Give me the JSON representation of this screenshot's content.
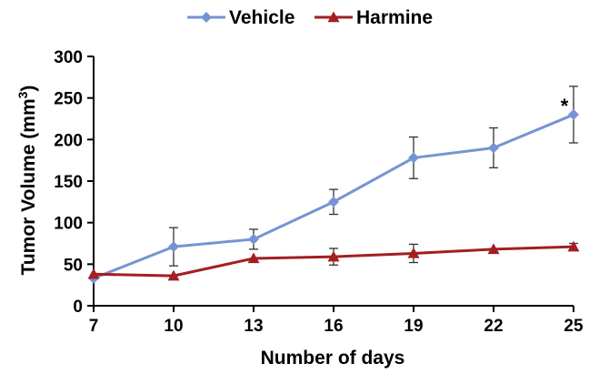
{
  "chart_data": {
    "type": "line",
    "title": "",
    "xlabel": "Number of days",
    "ylabel_main": "Tumor Volume (mm",
    "ylabel_sup": "3",
    "ylabel_close": ")",
    "x": [
      7,
      10,
      13,
      16,
      19,
      22,
      25
    ],
    "x_tick_labels": [
      "7",
      "10",
      "13",
      "16",
      "19",
      "22",
      "25"
    ],
    "ylim": [
      0,
      300
    ],
    "y_ticks": [
      0,
      50,
      100,
      150,
      200,
      250,
      300
    ],
    "y_tick_labels": [
      "0",
      "50",
      "100",
      "150",
      "200",
      "250",
      "300"
    ],
    "legend_position": "top-center",
    "series": [
      {
        "name": "Vehicle",
        "color": "#7694d3",
        "marker": "diamond",
        "values": [
          33,
          71,
          80,
          125,
          178,
          190,
          230
        ],
        "error": [
          0,
          23,
          12,
          15,
          25,
          24,
          34
        ]
      },
      {
        "name": "Harmine",
        "color": "#a31f21",
        "marker": "triangle",
        "values": [
          38,
          36,
          57,
          59,
          63,
          68,
          71
        ],
        "error": [
          0,
          0,
          0,
          10,
          11,
          0,
          4
        ]
      }
    ],
    "annotations": [
      {
        "text": "*",
        "x": 25,
        "y": 230
      }
    ]
  }
}
